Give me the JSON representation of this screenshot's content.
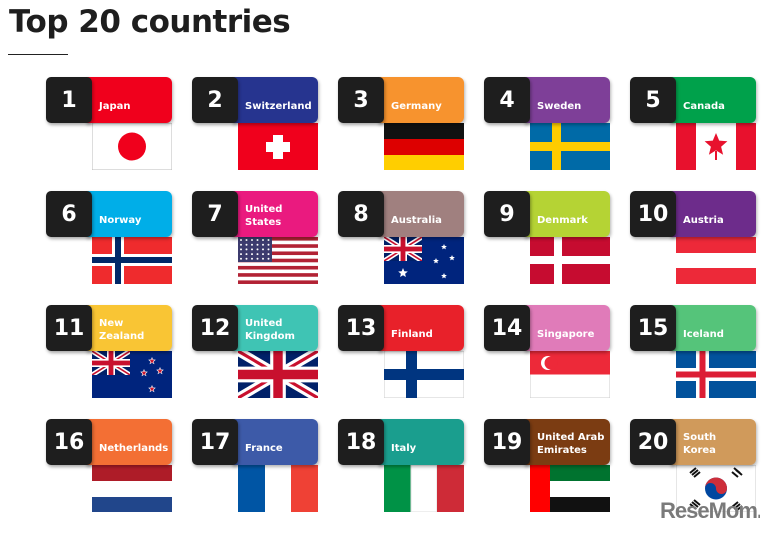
{
  "title": "Top 20 countries",
  "watermark": "ReseMom",
  "countries": [
    {
      "rank": "1",
      "name": "Japan",
      "color": "#f0001c",
      "flag": "japan"
    },
    {
      "rank": "2",
      "name": "Switzerland",
      "color": "#26348f",
      "flag": "switzerland"
    },
    {
      "rank": "3",
      "name": "Germany",
      "color": "#f7932e",
      "flag": "germany"
    },
    {
      "rank": "4",
      "name": "Sweden",
      "color": "#7e3f98",
      "flag": "sweden"
    },
    {
      "rank": "5",
      "name": "Canada",
      "color": "#00a14b",
      "flag": "canada"
    },
    {
      "rank": "6",
      "name": "Norway",
      "color": "#00aee8",
      "flag": "norway"
    },
    {
      "rank": "7",
      "name": "United\nStates",
      "color": "#ea1a7f",
      "flag": "usa"
    },
    {
      "rank": "8",
      "name": "Australia",
      "color": "#a0807f",
      "flag": "australia"
    },
    {
      "rank": "9",
      "name": "Denmark",
      "color": "#b5d334",
      "flag": "denmark"
    },
    {
      "rank": "10",
      "name": "Austria",
      "color": "#6d2c8b",
      "flag": "austria"
    },
    {
      "rank": "11",
      "name": "New\nZealand",
      "color": "#f9c534",
      "flag": "newzealand"
    },
    {
      "rank": "12",
      "name": "United\nKingdom",
      "color": "#3fc4b4",
      "flag": "uk"
    },
    {
      "rank": "13",
      "name": "Finland",
      "color": "#e8212a",
      "flag": "finland"
    },
    {
      "rank": "14",
      "name": "Singapore",
      "color": "#e07bb9",
      "flag": "singapore"
    },
    {
      "rank": "15",
      "name": "Iceland",
      "color": "#55c47a",
      "flag": "iceland"
    },
    {
      "rank": "16",
      "name": "Netherlands",
      "color": "#f36f34",
      "flag": "netherlands"
    },
    {
      "rank": "17",
      "name": "France",
      "color": "#3d5aa8",
      "flag": "france"
    },
    {
      "rank": "18",
      "name": "Italy",
      "color": "#1a9e8e",
      "flag": "italy"
    },
    {
      "rank": "19",
      "name": "United Arab\nEmirates",
      "color": "#7b3c12",
      "flag": "uae"
    },
    {
      "rank": "20",
      "name": "South\nKorea",
      "color": "#d09a5b",
      "flag": "southkorea"
    }
  ]
}
